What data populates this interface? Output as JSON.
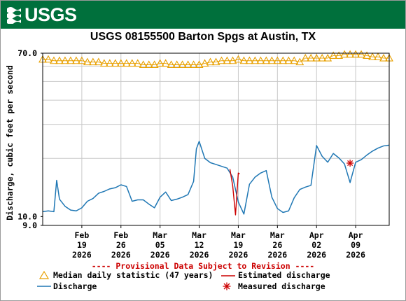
{
  "header": {
    "logo_text": "USGS"
  },
  "chart_data": {
    "type": "line",
    "title": "USGS 08155500 Barton Spgs at Austin, TX",
    "ylabel": "Discharge, cubic feet per second",
    "xlabel": "",
    "yscale": "log",
    "ylim": [
      9,
      70
    ],
    "yticks": [
      {
        "value": 70,
        "label": "70.0"
      },
      {
        "value": 10,
        "label": "10.0"
      },
      {
        "value": 9,
        "label": "9.0"
      }
    ],
    "xlim": [
      "2026-02-12",
      "2026-04-15"
    ],
    "xticks": [
      {
        "date": "2026-02-19",
        "lines": [
          "Feb",
          "19",
          "2026"
        ]
      },
      {
        "date": "2026-02-26",
        "lines": [
          "Feb",
          "26",
          "2026"
        ]
      },
      {
        "date": "2026-03-05",
        "lines": [
          "Mar",
          "05",
          "2026"
        ]
      },
      {
        "date": "2026-03-12",
        "lines": [
          "Mar",
          "12",
          "2026"
        ]
      },
      {
        "date": "2026-03-19",
        "lines": [
          "Mar",
          "19",
          "2026"
        ]
      },
      {
        "date": "2026-03-26",
        "lines": [
          "Mar",
          "26",
          "2026"
        ]
      },
      {
        "date": "2026-04-02",
        "lines": [
          "Apr",
          "02",
          "2026"
        ]
      },
      {
        "date": "2026-04-09",
        "lines": [
          "Apr",
          "09",
          "2026"
        ]
      }
    ],
    "grid": true,
    "provisional_note": "---- Provisional Data Subject to Revision ----",
    "legend": [
      {
        "label": "Median daily statistic (47 years)",
        "symbol": "triangle",
        "color": "#e8a000"
      },
      {
        "label": "Estimated discharge",
        "symbol": "line",
        "color": "#cc0000"
      },
      {
        "label": "Discharge",
        "symbol": "line",
        "color": "#1f77b4"
      },
      {
        "label": "Measured discharge",
        "symbol": "asterisk",
        "color": "#cc0000"
      }
    ],
    "series": [
      {
        "name": "Median daily statistic (47 years)",
        "type": "marker",
        "color": "#e8a000",
        "x": [
          "2026-02-12",
          "2026-02-13",
          "2026-02-14",
          "2026-02-15",
          "2026-02-16",
          "2026-02-17",
          "2026-02-18",
          "2026-02-19",
          "2026-02-20",
          "2026-02-21",
          "2026-02-22",
          "2026-02-23",
          "2026-02-24",
          "2026-02-25",
          "2026-02-26",
          "2026-02-27",
          "2026-02-28",
          "2026-03-01",
          "2026-03-02",
          "2026-03-03",
          "2026-03-04",
          "2026-03-05",
          "2026-03-06",
          "2026-03-07",
          "2026-03-08",
          "2026-03-09",
          "2026-03-10",
          "2026-03-11",
          "2026-03-12",
          "2026-03-13",
          "2026-03-14",
          "2026-03-15",
          "2026-03-16",
          "2026-03-17",
          "2026-03-18",
          "2026-03-19",
          "2026-03-20",
          "2026-03-21",
          "2026-03-22",
          "2026-03-23",
          "2026-03-24",
          "2026-03-25",
          "2026-03-26",
          "2026-03-27",
          "2026-03-28",
          "2026-03-29",
          "2026-03-30",
          "2026-03-31",
          "2026-04-01",
          "2026-04-02",
          "2026-04-03",
          "2026-04-04",
          "2026-04-05",
          "2026-04-06",
          "2026-04-07",
          "2026-04-08",
          "2026-04-09",
          "2026-04-10",
          "2026-04-11",
          "2026-04-12",
          "2026-04-13",
          "2026-04-14",
          "2026-04-15"
        ],
        "values": [
          65,
          65,
          64,
          64,
          64,
          64,
          64,
          64,
          63,
          63,
          63,
          62,
          62,
          62,
          62,
          62,
          62,
          62,
          61,
          61,
          61,
          62,
          62,
          61,
          61,
          61,
          61,
          61,
          61,
          62,
          63,
          63,
          64,
          64,
          64,
          65,
          64,
          64,
          64,
          64,
          64,
          64,
          64,
          64,
          64,
          64,
          63,
          66,
          66,
          66,
          66,
          66,
          68,
          68,
          69,
          69,
          69,
          69,
          68,
          67,
          67,
          66,
          66
        ]
      },
      {
        "name": "Discharge",
        "type": "line",
        "color": "#1f77b4",
        "x": [
          "2026-02-12",
          "2026-02-13",
          "2026-02-14",
          "2026-02-14T12",
          "2026-02-15",
          "2026-02-16",
          "2026-02-17",
          "2026-02-18",
          "2026-02-19",
          "2026-02-20",
          "2026-02-21",
          "2026-02-22",
          "2026-02-23",
          "2026-02-24",
          "2026-02-25",
          "2026-02-26",
          "2026-02-27",
          "2026-02-28",
          "2026-03-01",
          "2026-03-02",
          "2026-03-03",
          "2026-03-04",
          "2026-03-05",
          "2026-03-06",
          "2026-03-07",
          "2026-03-08",
          "2026-03-09",
          "2026-03-10",
          "2026-03-11",
          "2026-03-11T12",
          "2026-03-12",
          "2026-03-13",
          "2026-03-14",
          "2026-03-15",
          "2026-03-16",
          "2026-03-17",
          "2026-03-18",
          "2026-03-19",
          "2026-03-20",
          "2026-03-21",
          "2026-03-22",
          "2026-03-23",
          "2026-03-24",
          "2026-03-25",
          "2026-03-26",
          "2026-03-27",
          "2026-03-28",
          "2026-03-29",
          "2026-03-30",
          "2026-03-31",
          "2026-04-01",
          "2026-04-02",
          "2026-04-03",
          "2026-04-04",
          "2026-04-05",
          "2026-04-06",
          "2026-04-07",
          "2026-04-08",
          "2026-04-09",
          "2026-04-10",
          "2026-04-11",
          "2026-04-12",
          "2026-04-13",
          "2026-04-14",
          "2026-04-15"
        ],
        "values": [
          10.6,
          10.7,
          10.6,
          15.4,
          12.3,
          11.3,
          10.8,
          10.7,
          11.1,
          12.0,
          12.4,
          13.2,
          13.5,
          13.9,
          14.1,
          14.6,
          14.3,
          12.0,
          12.2,
          12.2,
          11.6,
          11.1,
          12.6,
          13.4,
          12.1,
          12.3,
          12.6,
          13.0,
          15.2,
          22.4,
          24.5,
          20.0,
          19.0,
          18.6,
          18.2,
          17.8,
          16.0,
          11.9,
          10.3,
          14.7,
          16.0,
          16.8,
          17.3,
          12.6,
          11.0,
          10.5,
          10.7,
          12.5,
          13.8,
          14.2,
          14.5,
          23.3,
          20.5,
          19.1,
          21.2,
          20.1,
          18.7,
          15.0,
          19.1,
          19.7,
          20.8,
          21.8,
          22.6,
          23.2,
          23.4
        ]
      },
      {
        "name": "Estimated discharge",
        "type": "line",
        "color": "#cc0000",
        "x": [
          "2026-03-17T12",
          "2026-03-18",
          "2026-03-18T12",
          "2026-03-19",
          "2026-03-19T06"
        ],
        "values": [
          17.6,
          14.4,
          10.2,
          16.8,
          16.6
        ]
      },
      {
        "name": "Measured discharge",
        "type": "asterisk",
        "color": "#cc0000",
        "x": [
          "2026-04-08"
        ],
        "values": [
          18.9
        ]
      }
    ]
  }
}
